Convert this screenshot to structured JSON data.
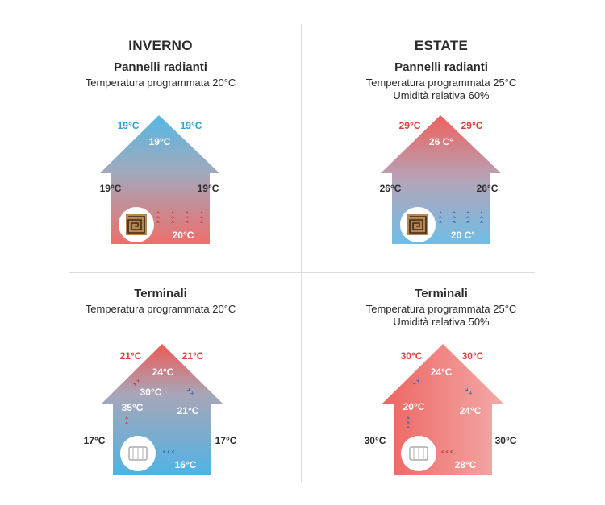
{
  "winter": {
    "title": "INVERNO",
    "radiant": {
      "subtitle": "Pannelli radianti",
      "program": "Temperatura programmata 20°C",
      "temps": {
        "top_left": "19°C",
        "top_right": "19°C",
        "roof_inner": "19°C",
        "side_left": "19°C",
        "side_right": "19°C",
        "floor": "20°C"
      }
    },
    "terminals": {
      "subtitle": "Terminali",
      "program": "Temperatura programmata 20°C",
      "temps": {
        "top_left": "21°C",
        "top_right": "21°C",
        "roof_inner": "24°C",
        "mid_left": "30°C",
        "heater_top": "35°C",
        "mid_right": "21°C",
        "side_left": "17°C",
        "side_right": "17°C",
        "floor": "16°C"
      }
    }
  },
  "summer": {
    "title": "ESTATE",
    "radiant": {
      "subtitle": "Pannelli radianti",
      "program": "Temperatura programmata 25°C",
      "humidity": "Umidità relativa 60%",
      "temps": {
        "top_left": "29°C",
        "top_right": "29°C",
        "roof_inner": "26 C°",
        "side_left": "26°C",
        "side_right": "26°C",
        "floor": "20 C°"
      }
    },
    "terminals": {
      "subtitle": "Terminali",
      "program": "Temperatura programmata 25°C",
      "humidity": "Umidità relativa 50%",
      "temps": {
        "top_left": "30°C",
        "top_right": "30°C",
        "roof_inner": "24°C",
        "mid_left": "20°C",
        "mid_right": "24°C",
        "side_left": "30°C",
        "side_right": "30°C",
        "floor": "28°C"
      }
    }
  },
  "colors": {
    "hot": "#e23c3c",
    "cold": "#2aa4d8",
    "warm_fill": "#ee6f6d",
    "cool_fill": "#6fbde6",
    "neutral_fill": "#a4a7b6"
  },
  "icons": {
    "radiant": "radiant-floor-coil-icon",
    "terminal": "radiator-terminal-icon",
    "arrows": "chevron-arrow-icon"
  }
}
